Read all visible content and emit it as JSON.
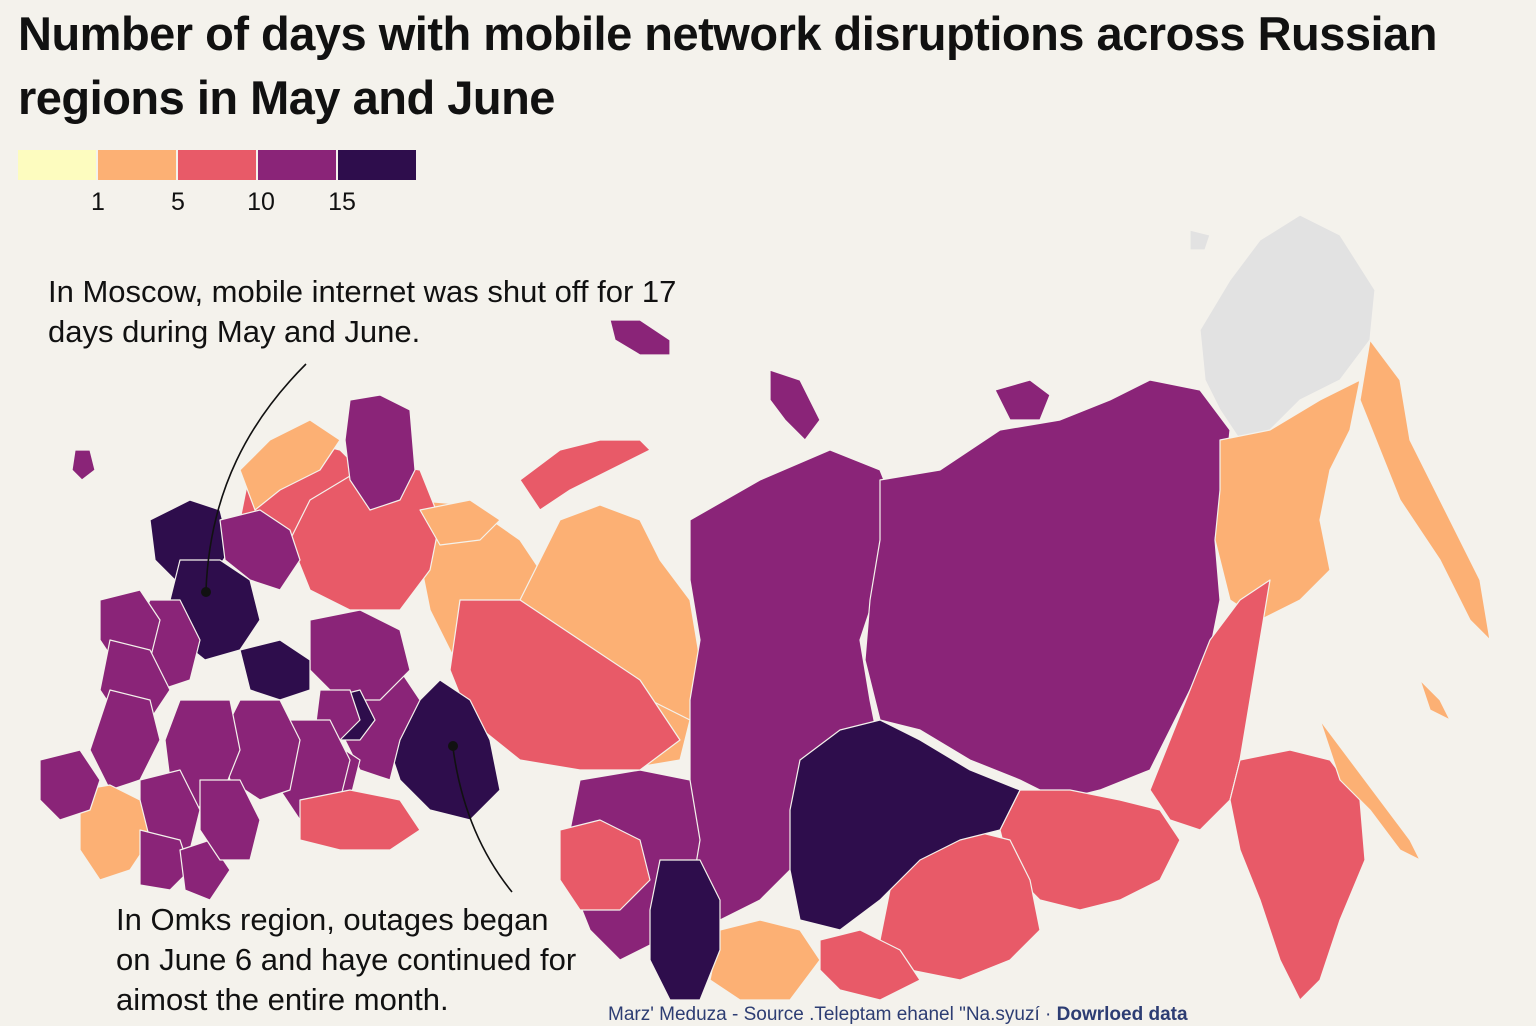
{
  "title": "Number of days with mobile network disruptions across Russian regions in May and June",
  "legend": {
    "colors": [
      "#fdfcbf",
      "#fcb074",
      "#e85a68",
      "#8a2478",
      "#2e0d4c"
    ],
    "ticks": [
      "1",
      "5",
      "10",
      "15"
    ]
  },
  "annotations": {
    "moscow": "In Moscow, mobile internet was shut off for 17 days during May and June.",
    "omsk": "In Omks region, outages began on June 6 and haye continued for aimost the entire month."
  },
  "footer": {
    "credit": "Marz' Meduza - Source .Teleptam ehanel \"Na.syuzí",
    "separator": " · ",
    "download": "Dowrloed data"
  },
  "map": {
    "no_data_color": "#e2e2e2",
    "border_color": "#f4f2ec",
    "marker_color": "#111111"
  }
}
